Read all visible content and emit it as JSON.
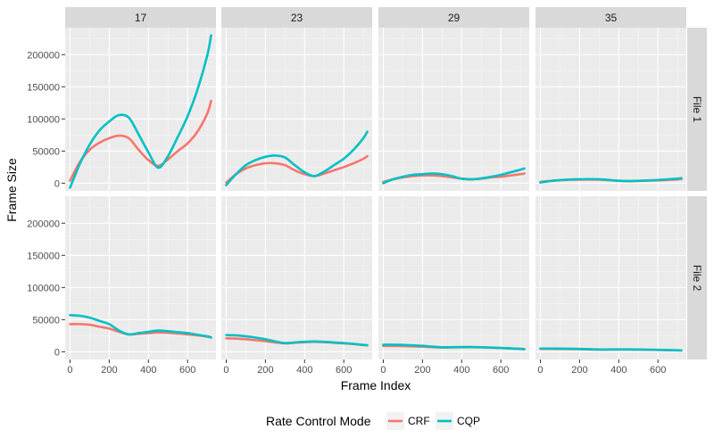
{
  "chart_data": {
    "type": "line",
    "xlabel": "Frame Index",
    "ylabel": "Frame Size",
    "xlim": [
      -25,
      745
    ],
    "ylim": [
      -12000,
      242000
    ],
    "x_ticks": [
      0,
      200,
      400,
      600
    ],
    "y_ticks": [
      0,
      50000,
      100000,
      150000,
      200000
    ],
    "grid": true,
    "column_facets": [
      "17",
      "23",
      "29",
      "35"
    ],
    "row_facets": [
      "File 1",
      "File 2"
    ],
    "legend": {
      "title": "Rate Control Mode",
      "placement": "bottom",
      "entries": [
        {
          "name": "CRF",
          "color": "#F8766D"
        },
        {
          "name": "CQP",
          "color": "#00BFC4"
        }
      ]
    },
    "x": [
      0,
      50,
      100,
      150,
      200,
      250,
      300,
      350,
      400,
      450,
      500,
      550,
      600,
      650,
      700,
      720
    ],
    "panels": [
      {
        "col": "17",
        "row": "File 1",
        "series": [
          {
            "name": "CRF",
            "values": [
              4000,
              33000,
              52000,
              63000,
              70000,
              74000,
              70000,
              52000,
              36000,
              27000,
              37000,
              50000,
              62000,
              80000,
              108000,
              128000
            ]
          },
          {
            "name": "CQP",
            "values": [
              -7000,
              30000,
              60000,
              82000,
              96000,
              106000,
              102000,
              76000,
              48000,
              24000,
              42000,
              72000,
              104000,
              145000,
              198000,
              230000
            ]
          }
        ]
      },
      {
        "col": "23",
        "row": "File 1",
        "series": [
          {
            "name": "CRF",
            "values": [
              1000,
              14000,
              23000,
              28000,
              31000,
              31000,
              28000,
              20000,
              14000,
              11000,
              15000,
              20000,
              25000,
              31000,
              38000,
              42000
            ]
          },
          {
            "name": "CQP",
            "values": [
              -3000,
              14000,
              28000,
              36000,
              41000,
              43000,
              40000,
              28000,
              17000,
              11000,
              18000,
              28000,
              38000,
              52000,
              70000,
              80000
            ]
          }
        ]
      },
      {
        "col": "29",
        "row": "File 1",
        "series": [
          {
            "name": "CRF",
            "values": [
              2000,
              6000,
              9000,
              11000,
              12000,
              12000,
              11000,
              9000,
              7000,
              6000,
              7000,
              9000,
              10000,
              12000,
              14000,
              15000
            ]
          },
          {
            "name": "CQP",
            "values": [
              0,
              6000,
              10000,
              13000,
              14000,
              15000,
              14000,
              11000,
              7000,
              6000,
              7500,
              10000,
              13000,
              17000,
              21000,
              23000
            ]
          }
        ]
      },
      {
        "col": "35",
        "row": "File 1",
        "series": [
          {
            "name": "CRF",
            "values": [
              2000,
              3500,
              4500,
              5200,
              5500,
              5600,
              5400,
              4600,
              3700,
              3200,
              3500,
              3900,
              4300,
              5000,
              5800,
              6300
            ]
          },
          {
            "name": "CQP",
            "values": [
              1000,
              3300,
              4800,
              5700,
              6200,
              6400,
              6100,
              5000,
              3700,
              3200,
              3700,
              4300,
              5000,
              6000,
              7200,
              7800
            ]
          }
        ]
      },
      {
        "col": "17",
        "row": "File 2",
        "series": [
          {
            "name": "CRF",
            "values": [
              43000,
              43000,
              42000,
              39000,
              36000,
              31000,
              27000,
              28000,
              29000,
              30000,
              29500,
              28500,
              27000,
              25500,
              23500,
              22000
            ]
          },
          {
            "name": "CQP",
            "values": [
              57000,
              56000,
              53000,
              48000,
              43000,
              33000,
              27000,
              29000,
              31000,
              33000,
              32000,
              30500,
              29000,
              26500,
              24000,
              22500
            ]
          }
        ]
      },
      {
        "col": "23",
        "row": "File 2",
        "series": [
          {
            "name": "CRF",
            "values": [
              21000,
              20500,
              19500,
              18000,
              16500,
              14500,
              13000,
              14000,
              15000,
              15500,
              15000,
              14000,
              13000,
              12000,
              10500,
              10000
            ]
          },
          {
            "name": "CQP",
            "values": [
              26000,
              25500,
              24000,
              22000,
              19500,
              16000,
              13500,
              14500,
              15500,
              16000,
              15500,
              14500,
              13500,
              12200,
              10700,
              10200
            ]
          }
        ]
      },
      {
        "col": "29",
        "row": "File 2",
        "series": [
          {
            "name": "CRF",
            "values": [
              9000,
              9000,
              8800,
              8400,
              8000,
              7200,
              6600,
              6800,
              7000,
              7100,
              6800,
              6300,
              5700,
              5100,
              4400,
              4000
            ]
          },
          {
            "name": "CQP",
            "values": [
              11000,
              11000,
              10600,
              10000,
              9200,
              8000,
              6900,
              7100,
              7300,
              7400,
              7100,
              6500,
              5900,
              5200,
              4500,
              4100
            ]
          }
        ]
      },
      {
        "col": "35",
        "row": "File 2",
        "series": [
          {
            "name": "CRF",
            "values": [
              4500,
              4500,
              4400,
              4200,
              4000,
              3700,
              3400,
              3400,
              3450,
              3500,
              3300,
              3100,
              2800,
              2500,
              2200,
              2000
            ]
          },
          {
            "name": "CQP",
            "values": [
              5000,
              5000,
              4900,
              4700,
              4400,
              4000,
              3600,
              3600,
              3650,
              3700,
              3500,
              3250,
              2950,
              2600,
              2300,
              2100
            ]
          }
        ]
      }
    ]
  }
}
